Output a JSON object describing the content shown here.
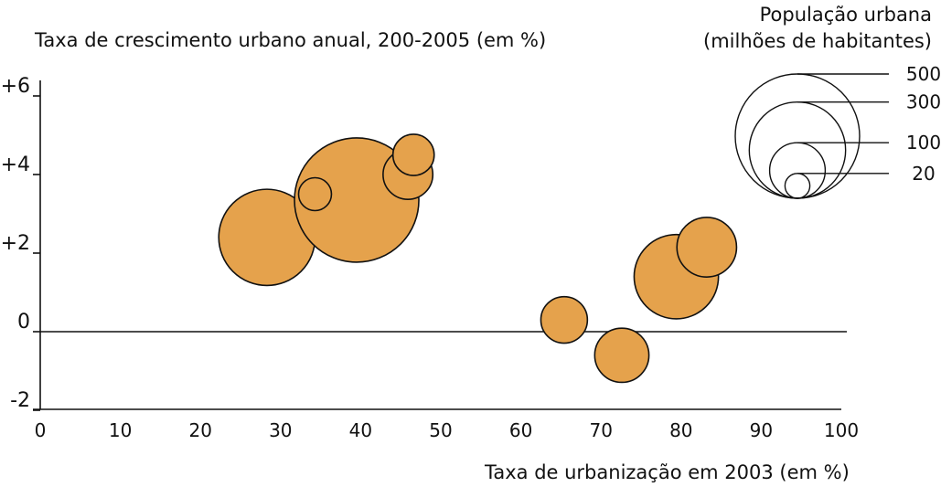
{
  "chart_data": {
    "type": "bubble",
    "xlabel": "Taxa de urbanização em 2003 (em %)",
    "ylabel": "Taxa de crescimento urbano anual, 200-2005 (em %)",
    "xlim": [
      0,
      100
    ],
    "ylim": [
      -2,
      6.5
    ],
    "x_ticks": [
      "0",
      "10",
      "20",
      "30",
      "40",
      "50",
      "60",
      "70",
      "80",
      "90",
      "100"
    ],
    "y_ticks": [
      {
        "value": 6,
        "label": "+6"
      },
      {
        "value": 4,
        "label": "+4"
      },
      {
        "value": 2,
        "label": "+2"
      },
      {
        "value": 0,
        "label": "0"
      },
      {
        "value": -2,
        "label": "-2"
      }
    ],
    "bubble_color": "#e5a24c",
    "points": [
      {
        "x": 28.3,
        "y": 2.4,
        "size": 300
      },
      {
        "x": 39.5,
        "y": 3.35,
        "size": 500
      },
      {
        "x": 34.3,
        "y": 3.5,
        "size": 35
      },
      {
        "x": 45.9,
        "y": 4.0,
        "size": 80
      },
      {
        "x": 46.6,
        "y": 4.5,
        "size": 55
      },
      {
        "x": 65.4,
        "y": 0.3,
        "size": 70
      },
      {
        "x": 72.6,
        "y": -0.6,
        "size": 95
      },
      {
        "x": 79.4,
        "y": 1.4,
        "size": 230
      },
      {
        "x": 83.2,
        "y": 2.15,
        "size": 115
      }
    ],
    "legend": {
      "title_line1": "População urbana",
      "title_line2": "(milhões de habitantes)",
      "sizes": [
        {
          "value": 500,
          "label": "500"
        },
        {
          "value": 300,
          "label": "300"
        },
        {
          "value": 100,
          "label": "100"
        },
        {
          "value": 20,
          "label": "20"
        }
      ]
    }
  }
}
